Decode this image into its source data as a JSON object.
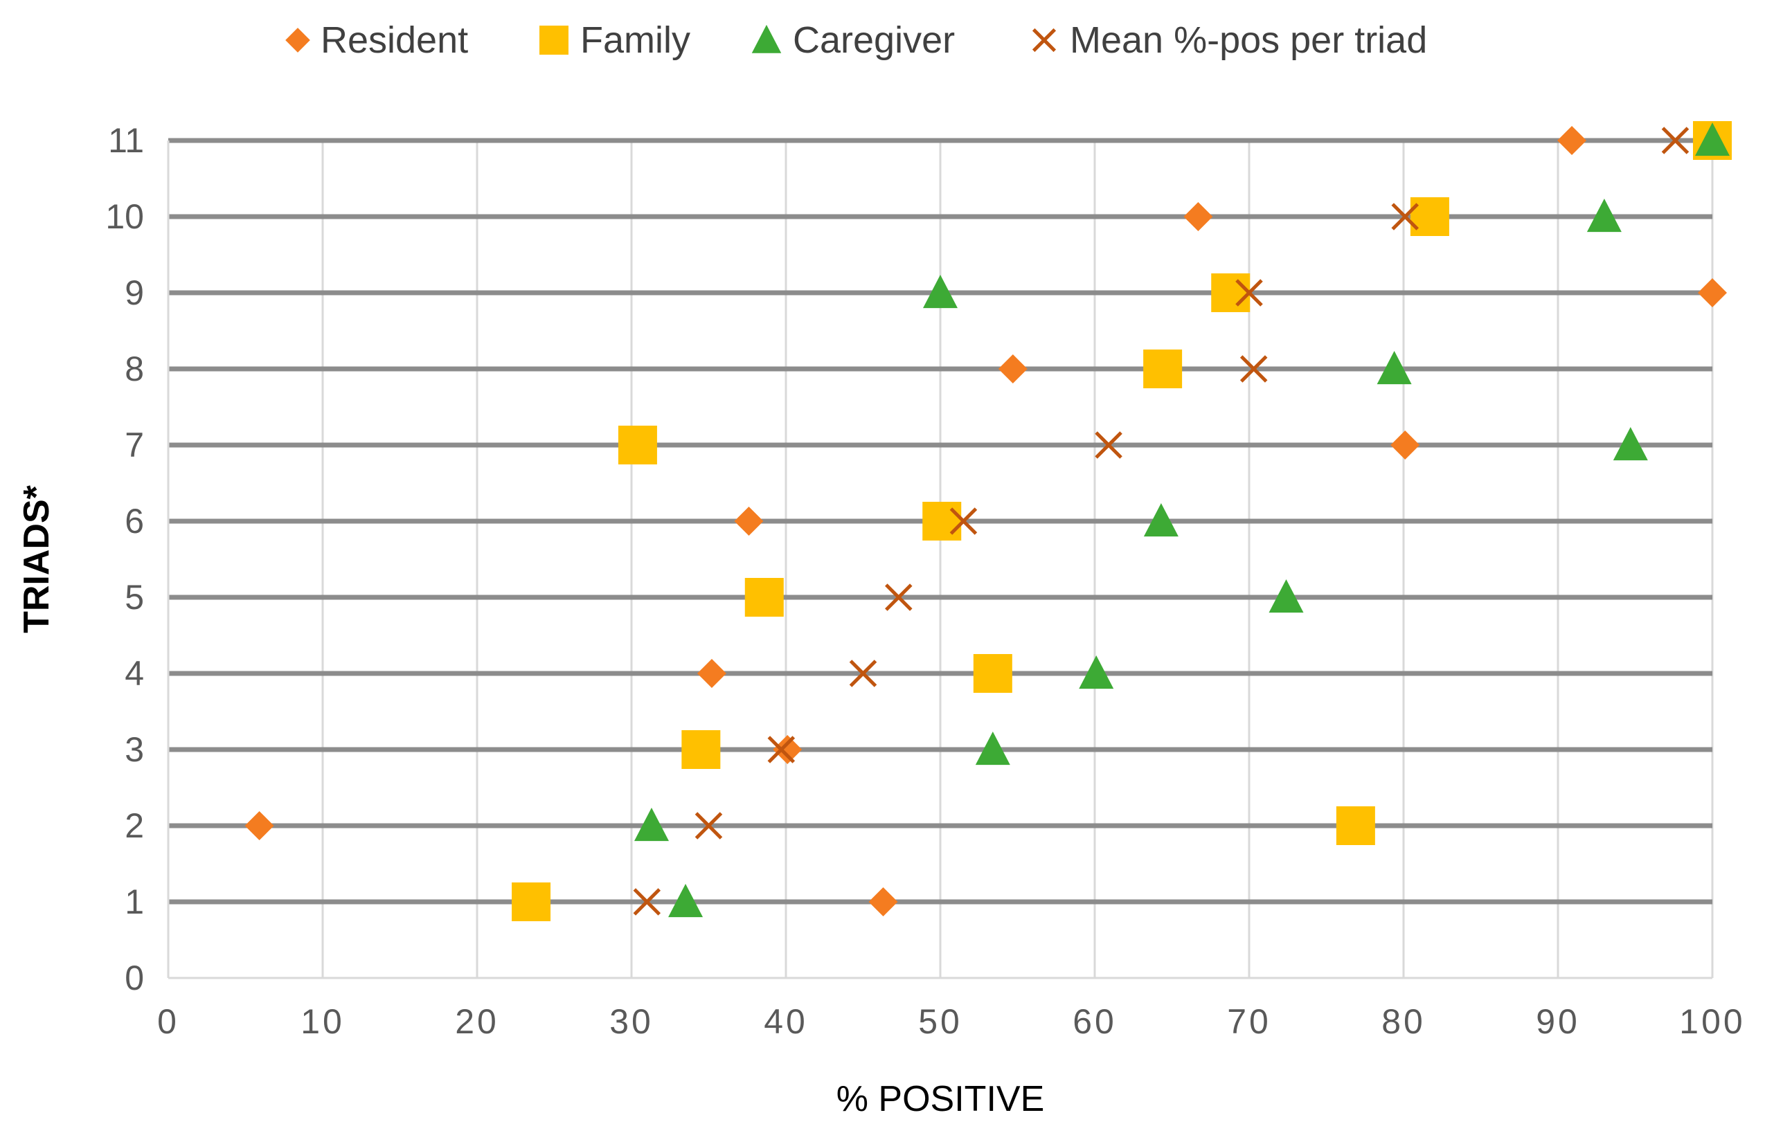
{
  "chart_data": {
    "type": "scatter",
    "xlabel": "% POSITIVE",
    "ylabel": "TRIADS*",
    "xlim": [
      0,
      100
    ],
    "ylim": [
      0,
      11
    ],
    "x_ticks": [
      "0",
      "10",
      "20",
      "30",
      "40",
      "50",
      "60",
      "70",
      "80",
      "90",
      "100"
    ],
    "y_ticks": [
      "0",
      "1",
      "2",
      "3",
      "4",
      "5",
      "6",
      "7",
      "8",
      "9",
      "10",
      "11"
    ],
    "grid": "both",
    "legend_position": "top",
    "series": [
      {
        "name": "Resident",
        "marker": "diamond",
        "color": "#F47C20",
        "points": [
          {
            "x": 46.3,
            "y": 1
          },
          {
            "x": 5.9,
            "y": 2
          },
          {
            "x": 40.1,
            "y": 3
          },
          {
            "x": 35.2,
            "y": 4
          },
          {
            "x": 37.6,
            "y": 6
          },
          {
            "x": 80.1,
            "y": 7
          },
          {
            "x": 54.7,
            "y": 8
          },
          {
            "x": 100,
            "y": 9
          },
          {
            "x": 66.7,
            "y": 10
          },
          {
            "x": 90.9,
            "y": 11
          }
        ]
      },
      {
        "name": "Family",
        "marker": "square",
        "color": "#FFC000",
        "points": [
          {
            "x": 23.5,
            "y": 1
          },
          {
            "x": 76.9,
            "y": 2
          },
          {
            "x": 34.5,
            "y": 3
          },
          {
            "x": 53.4,
            "y": 4
          },
          {
            "x": 38.6,
            "y": 5
          },
          {
            "x": 50.1,
            "y": 6
          },
          {
            "x": 30.4,
            "y": 7
          },
          {
            "x": 64.4,
            "y": 8
          },
          {
            "x": 68.8,
            "y": 9
          },
          {
            "x": 81.7,
            "y": 10
          },
          {
            "x": 100,
            "y": 11
          }
        ]
      },
      {
        "name": "Caregiver",
        "marker": "triangle",
        "color": "#3DAA35",
        "points": [
          {
            "x": 33.5,
            "y": 1
          },
          {
            "x": 31.3,
            "y": 2
          },
          {
            "x": 53.4,
            "y": 3
          },
          {
            "x": 60.1,
            "y": 4
          },
          {
            "x": 72.4,
            "y": 5
          },
          {
            "x": 64.3,
            "y": 6
          },
          {
            "x": 94.7,
            "y": 7
          },
          {
            "x": 79.4,
            "y": 8
          },
          {
            "x": 50.0,
            "y": 9
          },
          {
            "x": 93.0,
            "y": 10
          },
          {
            "x": 100,
            "y": 11
          }
        ]
      },
      {
        "name": "Mean %-pos per triad",
        "marker": "x",
        "color": "#C0550F",
        "points": [
          {
            "x": 31.0,
            "y": 1
          },
          {
            "x": 35.0,
            "y": 2
          },
          {
            "x": 39.7,
            "y": 3
          },
          {
            "x": 45.0,
            "y": 4
          },
          {
            "x": 47.3,
            "y": 5
          },
          {
            "x": 51.5,
            "y": 6
          },
          {
            "x": 60.9,
            "y": 7
          },
          {
            "x": 70.3,
            "y": 8
          },
          {
            "x": 70.0,
            "y": 9
          },
          {
            "x": 80.1,
            "y": 10
          },
          {
            "x": 97.6,
            "y": 11
          }
        ]
      }
    ]
  }
}
